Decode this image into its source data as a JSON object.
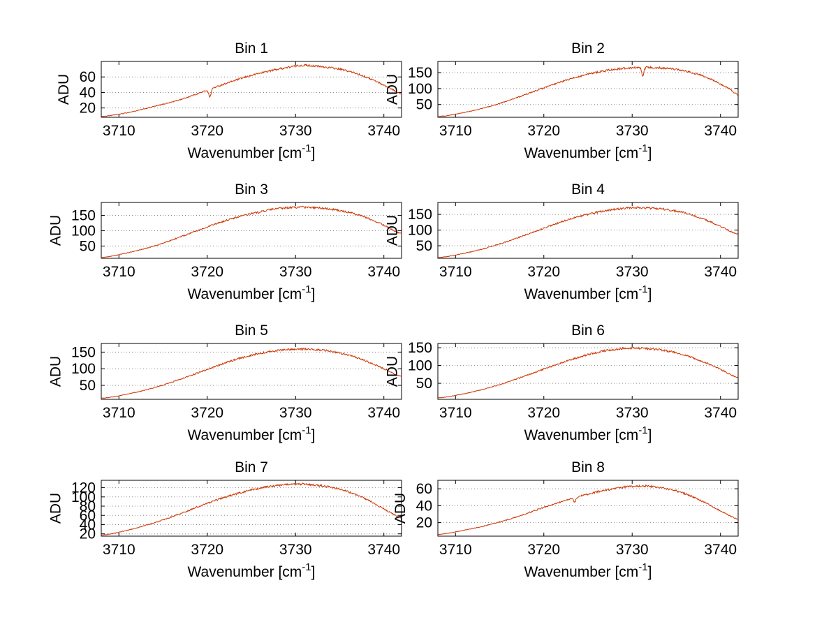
{
  "figure": {
    "background": "#ffffff",
    "line_color": "#cc3300",
    "grid_color": "#8a8a8a",
    "axis_color": "#000000",
    "text_color": "#000000"
  },
  "chart_data": [
    {
      "type": "line",
      "title": "Bin 1",
      "xlabel": "Wavenumber [cm",
      "xlabel_sup": "-1",
      "xlabel_end": "]",
      "ylabel": "ADU",
      "xlim": [
        3708,
        3742
      ],
      "xticks": [
        3710,
        3720,
        3730,
        3740
      ],
      "ylim": [
        8,
        80
      ],
      "yticks": [
        20,
        40,
        60
      ],
      "grid": "y-dotted",
      "series": [
        {
          "name": "spectrum",
          "points": [
            [
              3708,
              9
            ],
            [
              3711,
              14
            ],
            [
              3714,
              22
            ],
            [
              3717,
              31
            ],
            [
              3720,
              43
            ],
            [
              3723,
              55
            ],
            [
              3726,
              65
            ],
            [
              3729,
              72
            ],
            [
              3731,
              75
            ],
            [
              3733,
              73
            ],
            [
              3735,
              70
            ],
            [
              3737,
              64
            ],
            [
              3739,
              55
            ],
            [
              3741,
              44
            ],
            [
              3742,
              38
            ]
          ]
        }
      ],
      "spikes": [
        {
          "x": 3720.3,
          "depth": 10,
          "width": 0.18
        }
      ]
    },
    {
      "type": "line",
      "title": "Bin 2",
      "xlabel": "Wavenumber [cm",
      "xlabel_sup": "-1",
      "xlabel_end": "]",
      "ylabel": "ADU",
      "xlim": [
        3708,
        3742
      ],
      "xticks": [
        3710,
        3720,
        3730,
        3740
      ],
      "ylim": [
        10,
        185
      ],
      "yticks": [
        50,
        100,
        150
      ],
      "grid": "y-dotted",
      "series": [
        {
          "name": "spectrum",
          "points": [
            [
              3708,
              12
            ],
            [
              3711,
              25
            ],
            [
              3714,
              45
            ],
            [
              3717,
              72
            ],
            [
              3720,
              102
            ],
            [
              3723,
              130
            ],
            [
              3726,
              151
            ],
            [
              3729,
              163
            ],
            [
              3731,
              166
            ],
            [
              3733,
              165
            ],
            [
              3735,
              160
            ],
            [
              3737,
              148
            ],
            [
              3739,
              128
            ],
            [
              3741,
              100
            ],
            [
              3742,
              80
            ]
          ]
        }
      ],
      "spikes": [
        {
          "x": 3731.2,
          "depth": 27,
          "width": 0.18
        }
      ]
    },
    {
      "type": "line",
      "title": "Bin 3",
      "xlabel": "Wavenumber [cm",
      "xlabel_sup": "-1",
      "xlabel_end": "]",
      "ylabel": "ADU",
      "xlim": [
        3708,
        3742
      ],
      "xticks": [
        3710,
        3720,
        3730,
        3740
      ],
      "ylim": [
        10,
        192
      ],
      "yticks": [
        50,
        100,
        150
      ],
      "grid": "y-dotted",
      "series": [
        {
          "name": "spectrum",
          "points": [
            [
              3708,
              12
            ],
            [
              3711,
              28
            ],
            [
              3714,
              50
            ],
            [
              3717,
              80
            ],
            [
              3720,
              112
            ],
            [
              3723,
              141
            ],
            [
              3726,
              161
            ],
            [
              3728,
              172
            ],
            [
              3730,
              176
            ],
            [
              3732,
              175
            ],
            [
              3734,
              170
            ],
            [
              3736,
              160
            ],
            [
              3738,
              143
            ],
            [
              3740,
              118
            ],
            [
              3742,
              90
            ]
          ]
        }
      ],
      "spikes": []
    },
    {
      "type": "line",
      "title": "Bin 4",
      "xlabel": "Wavenumber [cm",
      "xlabel_sup": "-1",
      "xlabel_end": "]",
      "ylabel": "ADU",
      "xlim": [
        3708,
        3742
      ],
      "xticks": [
        3710,
        3720,
        3730,
        3740
      ],
      "ylim": [
        10,
        188
      ],
      "yticks": [
        50,
        100,
        150
      ],
      "grid": "y-dotted",
      "series": [
        {
          "name": "spectrum",
          "points": [
            [
              3708,
              12
            ],
            [
              3711,
              26
            ],
            [
              3714,
              47
            ],
            [
              3717,
              75
            ],
            [
              3720,
              106
            ],
            [
              3723,
              135
            ],
            [
              3726,
              156
            ],
            [
              3728,
              166
            ],
            [
              3730,
              171
            ],
            [
              3732,
              170
            ],
            [
              3734,
              165
            ],
            [
              3736,
              154
            ],
            [
              3738,
              136
            ],
            [
              3740,
              112
            ],
            [
              3742,
              86
            ]
          ]
        }
      ],
      "spikes": []
    },
    {
      "type": "line",
      "title": "Bin 5",
      "xlabel": "Wavenumber [cm",
      "xlabel_sup": "-1",
      "xlabel_end": "]",
      "ylabel": "ADU",
      "xlim": [
        3708,
        3742
      ],
      "xticks": [
        3710,
        3720,
        3730,
        3740
      ],
      "ylim": [
        8,
        176
      ],
      "yticks": [
        50,
        100,
        150
      ],
      "grid": "y-dotted",
      "series": [
        {
          "name": "spectrum",
          "points": [
            [
              3708,
              11
            ],
            [
              3711,
              24
            ],
            [
              3714,
              43
            ],
            [
              3717,
              69
            ],
            [
              3720,
              98
            ],
            [
              3723,
              126
            ],
            [
              3726,
              146
            ],
            [
              3728,
              155
            ],
            [
              3730,
              159
            ],
            [
              3732,
              158
            ],
            [
              3734,
              152
            ],
            [
              3736,
              141
            ],
            [
              3738,
              123
            ],
            [
              3740,
              100
            ],
            [
              3742,
              76
            ]
          ]
        }
      ],
      "spikes": []
    },
    {
      "type": "line",
      "title": "Bin 6",
      "xlabel": "Wavenumber [cm",
      "xlabel_sup": "-1",
      "xlabel_end": "]",
      "ylabel": "ADU",
      "xlim": [
        3708,
        3742
      ],
      "xticks": [
        3710,
        3720,
        3730,
        3740
      ],
      "ylim": [
        5,
        162
      ],
      "yticks": [
        50,
        100,
        150
      ],
      "grid": "y-dotted",
      "series": [
        {
          "name": "spectrum",
          "points": [
            [
              3708,
              9
            ],
            [
              3711,
              21
            ],
            [
              3714,
              39
            ],
            [
              3717,
              63
            ],
            [
              3720,
              90
            ],
            [
              3723,
              116
            ],
            [
              3726,
              136
            ],
            [
              3728,
              145
            ],
            [
              3730,
              149
            ],
            [
              3732,
              147
            ],
            [
              3734,
              141
            ],
            [
              3736,
              129
            ],
            [
              3738,
              111
            ],
            [
              3740,
              89
            ],
            [
              3742,
              66
            ]
          ]
        }
      ],
      "spikes": []
    },
    {
      "type": "line",
      "title": "Bin 7",
      "xlabel": "Wavenumber [cm",
      "xlabel_sup": "-1",
      "xlabel_end": "]",
      "ylabel": "ADU",
      "xlim": [
        3708,
        3742
      ],
      "xticks": [
        3710,
        3720,
        3730,
        3740
      ],
      "ylim": [
        15,
        136
      ],
      "yticks": [
        20,
        40,
        60,
        80,
        100,
        120
      ],
      "grid": "y-dotted",
      "series": [
        {
          "name": "spectrum",
          "points": [
            [
              3708,
              17
            ],
            [
              3711,
              28
            ],
            [
              3714,
              44
            ],
            [
              3717,
              64
            ],
            [
              3720,
              86
            ],
            [
              3723,
              105
            ],
            [
              3726,
              119
            ],
            [
              3728,
              125
            ],
            [
              3730,
              128
            ],
            [
              3732,
              126
            ],
            [
              3734,
              121
            ],
            [
              3736,
              111
            ],
            [
              3738,
              95
            ],
            [
              3740,
              74
            ],
            [
              3742,
              55
            ]
          ]
        }
      ],
      "spikes": []
    },
    {
      "type": "line",
      "title": "Bin 8",
      "xlabel": "Wavenumber [cm",
      "xlabel_sup": "-1",
      "xlabel_end": "]",
      "ylabel": "ADU",
      "xlim": [
        3708,
        3742
      ],
      "xticks": [
        3710,
        3720,
        3730,
        3740
      ],
      "ylim": [
        4,
        70
      ],
      "yticks": [
        20,
        40,
        60
      ],
      "grid": "y-dotted",
      "series": [
        {
          "name": "spectrum",
          "points": [
            [
              3708,
              6
            ],
            [
              3711,
              11
            ],
            [
              3714,
              18
            ],
            [
              3717,
              27
            ],
            [
              3720,
              38
            ],
            [
              3723,
              48
            ],
            [
              3726,
              56
            ],
            [
              3728,
              60
            ],
            [
              3730,
              63
            ],
            [
              3732,
              63
            ],
            [
              3734,
              60
            ],
            [
              3736,
              54
            ],
            [
              3738,
              45
            ],
            [
              3740,
              34
            ],
            [
              3742,
              24
            ]
          ]
        }
      ],
      "spikes": [
        {
          "x": 3723.5,
          "depth": 5,
          "width": 0.18
        }
      ]
    }
  ]
}
